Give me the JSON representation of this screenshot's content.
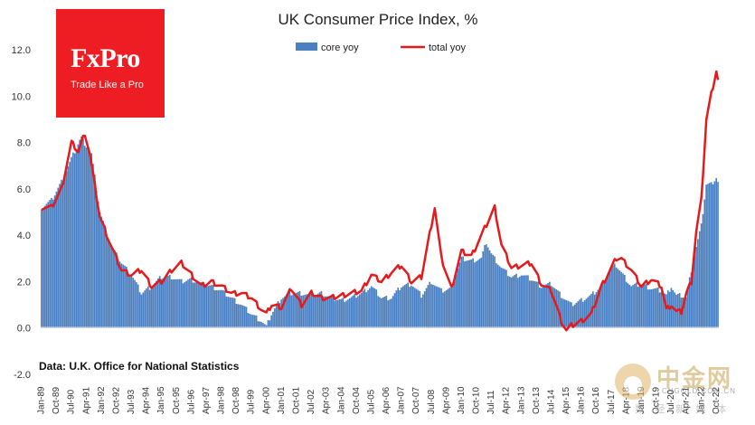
{
  "chart_data": {
    "type": "bar+line",
    "title": "UK Consumer Price Index, %",
    "xlabel": "",
    "ylabel": "",
    "ylim": [
      -2.0,
      12.0
    ],
    "y_ticks": [
      "12.0",
      "10.0",
      "8.0",
      "6.0",
      "4.0",
      "2.0",
      "0.0",
      "-2.0"
    ],
    "y_tick_values": [
      12,
      10,
      8,
      6,
      4,
      2,
      0,
      -2
    ],
    "x_tick_labels": [
      "Jan-89",
      "Oct-89",
      "Jul-90",
      "Apr-91",
      "Jan-92",
      "Oct-92",
      "Jul-93",
      "Apr-94",
      "Jan-95",
      "Oct-95",
      "Jul-96",
      "Apr-97",
      "Jan-98",
      "Oct-98",
      "Jul-99",
      "Apr-00",
      "Jan-01",
      "Oct-01",
      "Jul-02",
      "Apr-03",
      "Jan-04",
      "Oct-04",
      "Jul-05",
      "Apr-06",
      "Jan-07",
      "Oct-07",
      "Jul-08",
      "Apr-09",
      "Jan-10",
      "Oct-10",
      "Jul-11",
      "Apr-12",
      "Jan-13",
      "Oct-13",
      "Jul-14",
      "Apr-15",
      "Jan-16",
      "Oct-16",
      "Jul-17",
      "Apr-18",
      "Jan-19",
      "Oct-19",
      "Jul-20",
      "Apr-21",
      "Jan-22",
      "Oct-22"
    ],
    "grid": false,
    "legend_position": "top-center",
    "series_core_name": "core yoy",
    "series_total_name": "total yoy",
    "core_color": "#4a7fc1",
    "total_color": "#e41a1c",
    "core_anchors": [
      [
        "Jan-89",
        5.2
      ],
      [
        "Jul-89",
        5.5
      ],
      [
        "Jan-90",
        6.3
      ],
      [
        "Jul-90",
        7.3
      ],
      [
        "Dec-90",
        8.1
      ],
      [
        "Jan-91",
        8.2
      ],
      [
        "Jul-91",
        7.5
      ],
      [
        "Dec-91",
        5.0
      ],
      [
        "Jul-92",
        3.5
      ],
      [
        "Jan-93",
        2.8
      ],
      [
        "Jul-93",
        2.3
      ],
      [
        "Jan-94",
        1.5
      ],
      [
        "Jul-94",
        1.8
      ],
      [
        "Jan-95",
        2.2
      ],
      [
        "Jul-95",
        2.2
      ],
      [
        "Jan-96",
        2.0
      ],
      [
        "Jul-96",
        2.1
      ],
      [
        "Jan-97",
        1.9
      ],
      [
        "Jul-97",
        1.8
      ],
      [
        "Jan-98",
        1.6
      ],
      [
        "Jul-98",
        1.3
      ],
      [
        "Jan-99",
        1.0
      ],
      [
        "Jul-99",
        0.6
      ],
      [
        "Jan-00",
        0.3
      ],
      [
        "Apr-00",
        0.05
      ],
      [
        "Jul-00",
        0.6
      ],
      [
        "Jan-01",
        1.3
      ],
      [
        "Jul-01",
        1.5
      ],
      [
        "Jan-02",
        1.5
      ],
      [
        "Jul-02",
        1.4
      ],
      [
        "Jan-03",
        1.5
      ],
      [
        "Jul-03",
        1.3
      ],
      [
        "Jan-04",
        1.2
      ],
      [
        "Jul-04",
        1.3
      ],
      [
        "Jan-05",
        1.5
      ],
      [
        "Jul-05",
        1.8
      ],
      [
        "Jan-06",
        1.3
      ],
      [
        "Jul-06",
        1.3
      ],
      [
        "Jan-07",
        1.8
      ],
      [
        "Jul-07",
        1.9
      ],
      [
        "Jan-08",
        1.4
      ],
      [
        "Jul-08",
        2.0
      ],
      [
        "Jan-09",
        1.6
      ],
      [
        "Jul-09",
        1.7
      ],
      [
        "Jan-10",
        3.0
      ],
      [
        "Jul-10",
        2.9
      ],
      [
        "Jan-11",
        3.0
      ],
      [
        "Apr-11",
        3.7
      ],
      [
        "Jul-11",
        3.2
      ],
      [
        "Jan-12",
        2.6
      ],
      [
        "Jul-12",
        2.2
      ],
      [
        "Jan-13",
        2.3
      ],
      [
        "Jul-13",
        2.1
      ],
      [
        "Jan-14",
        1.8
      ],
      [
        "Jul-14",
        1.9
      ],
      [
        "Jan-15",
        1.4
      ],
      [
        "Jul-15",
        1.0
      ],
      [
        "Jan-16",
        1.2
      ],
      [
        "Jul-16",
        1.4
      ],
      [
        "Jan-17",
        1.8
      ],
      [
        "Jul-17",
        2.6
      ],
      [
        "Oct-17",
        2.7
      ],
      [
        "Jan-18",
        2.4
      ],
      [
        "Jul-18",
        1.8
      ],
      [
        "Jan-19",
        1.9
      ],
      [
        "Jul-19",
        1.7
      ],
      [
        "Jan-20",
        1.6
      ],
      [
        "Apr-20",
        1.4
      ],
      [
        "Jul-20",
        1.8
      ],
      [
        "Oct-20",
        1.4
      ],
      [
        "Jan-21",
        1.4
      ],
      [
        "Apr-21",
        1.3
      ],
      [
        "Jul-21",
        2.5
      ],
      [
        "Oct-21",
        3.5
      ],
      [
        "Jan-22",
        4.4
      ],
      [
        "Apr-22",
        6.2
      ],
      [
        "Jul-22",
        6.2
      ],
      [
        "Oct-22",
        6.5
      ],
      [
        "Nov-22",
        6.3
      ]
    ],
    "total_anchors": [
      [
        "Jan-89",
        5.2
      ],
      [
        "Jul-89",
        5.2
      ],
      [
        "Jan-90",
        6.0
      ],
      [
        "Jul-90",
        8.0
      ],
      [
        "Nov-90",
        7.6
      ],
      [
        "Mar-91",
        8.4
      ],
      [
        "Jun-91",
        7.5
      ],
      [
        "Dec-91",
        4.8
      ],
      [
        "Jul-92",
        3.5
      ],
      [
        "Jan-93",
        2.5
      ],
      [
        "Jul-93",
        2.3
      ],
      [
        "Jan-94",
        2.5
      ],
      [
        "Jul-94",
        1.8
      ],
      [
        "Jan-95",
        2.0
      ],
      [
        "Jul-95",
        2.5
      ],
      [
        "Jan-96",
        2.8
      ],
      [
        "Jul-96",
        2.3
      ],
      [
        "Jan-97",
        1.8
      ],
      [
        "Jul-97",
        2.0
      ],
      [
        "Jan-98",
        1.8
      ],
      [
        "Jul-98",
        1.5
      ],
      [
        "Jan-99",
        1.5
      ],
      [
        "Jul-99",
        1.3
      ],
      [
        "Jan-00",
        0.8
      ],
      [
        "Apr-00",
        0.6
      ],
      [
        "Jul-00",
        1.0
      ],
      [
        "Jan-01",
        0.9
      ],
      [
        "Jul-01",
        1.7
      ],
      [
        "Jan-02",
        1.0
      ],
      [
        "Jul-02",
        1.5
      ],
      [
        "Jan-03",
        1.3
      ],
      [
        "Jul-03",
        1.3
      ],
      [
        "Jan-04",
        1.4
      ],
      [
        "Jul-04",
        1.5
      ],
      [
        "Jan-05",
        1.6
      ],
      [
        "Jul-05",
        2.3
      ],
      [
        "Jan-06",
        2.0
      ],
      [
        "Jul-06",
        2.4
      ],
      [
        "Jan-07",
        2.7
      ],
      [
        "Jul-07",
        2.0
      ],
      [
        "Jan-08",
        2.2
      ],
      [
        "Sep-08",
        5.2
      ],
      [
        "Jan-09",
        3.0
      ],
      [
        "Jul-09",
        1.7
      ],
      [
        "Jan-10",
        3.3
      ],
      [
        "Jul-10",
        3.1
      ],
      [
        "Jan-11",
        4.0
      ],
      [
        "Sep-11",
        5.2
      ],
      [
        "Jan-12",
        3.6
      ],
      [
        "Jul-12",
        2.6
      ],
      [
        "Jan-13",
        2.7
      ],
      [
        "Jul-13",
        2.8
      ],
      [
        "Jan-14",
        1.9
      ],
      [
        "Jul-14",
        1.6
      ],
      [
        "Jan-15",
        0.3
      ],
      [
        "Apr-15",
        -0.1
      ],
      [
        "Jul-15",
        0.1
      ],
      [
        "Jan-16",
        0.3
      ],
      [
        "Jul-16",
        0.6
      ],
      [
        "Jan-17",
        1.8
      ],
      [
        "Jul-17",
        2.6
      ],
      [
        "Oct-17",
        3.0
      ],
      [
        "Jan-18",
        3.0
      ],
      [
        "Jul-18",
        2.5
      ],
      [
        "Jan-19",
        1.8
      ],
      [
        "Jul-19",
        2.1
      ],
      [
        "Jan-20",
        1.8
      ],
      [
        "Apr-20",
        0.8
      ],
      [
        "Jul-20",
        1.0
      ],
      [
        "Oct-20",
        0.7
      ],
      [
        "Jan-21",
        0.7
      ],
      [
        "Apr-21",
        1.5
      ],
      [
        "Jul-21",
        2.0
      ],
      [
        "Oct-21",
        4.2
      ],
      [
        "Jan-22",
        5.5
      ],
      [
        "Apr-22",
        9.0
      ],
      [
        "Jul-22",
        10.1
      ],
      [
        "Oct-22",
        11.1
      ],
      [
        "Nov-22",
        10.7
      ]
    ]
  },
  "logo": {
    "brand": "FxPro",
    "slogan": "Trade Like a Pro"
  },
  "source": "Data: U.K. Office for National Statistics",
  "watermark": {
    "cn": "中金网",
    "url": "CNGOLD.COM.CN",
    "sub": "数 经 新 媒 体"
  }
}
